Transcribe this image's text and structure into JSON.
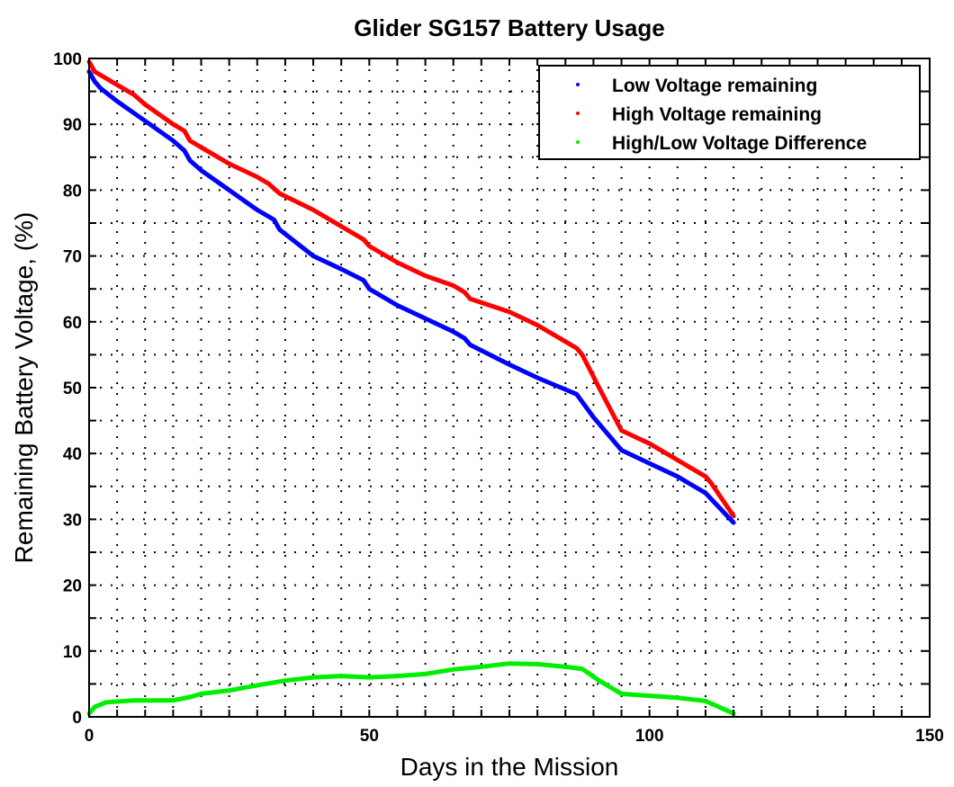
{
  "chart_data": {
    "type": "line",
    "title": "Glider SG157 Battery Usage",
    "xlabel": "Days in the Mission",
    "ylabel": "Remaining Battery Voltage, (%)",
    "xlim": [
      0,
      150
    ],
    "ylim": [
      0,
      100
    ],
    "xticks": [
      0,
      50,
      100,
      150
    ],
    "yticks": [
      0,
      10,
      20,
      30,
      40,
      50,
      60,
      70,
      80,
      90,
      100
    ],
    "grid": true,
    "grid_step_x": 5,
    "grid_step_y": 5,
    "legend_position": "top-right",
    "series": [
      {
        "name": "Low Voltage remaining",
        "color": "#0000ff",
        "x": [
          0,
          1,
          2,
          5,
          10,
          15,
          17,
          18,
          20,
          25,
          30,
          33,
          34,
          40,
          45,
          49,
          50,
          55,
          60,
          65,
          67,
          68,
          75,
          80,
          87,
          90,
          95,
          100,
          105,
          110,
          115
        ],
        "y": [
          98,
          96.5,
          95.5,
          93.5,
          90.5,
          87.5,
          86,
          84.5,
          83,
          80,
          77,
          75.5,
          74,
          70,
          68,
          66.3,
          65,
          62.5,
          60.5,
          58.5,
          57.5,
          56.5,
          53.5,
          51.5,
          49,
          45.5,
          40.5,
          38.5,
          36.5,
          34,
          29.5
        ]
      },
      {
        "name": "High Voltage remaining",
        "color": "#ff0000",
        "x": [
          0,
          1,
          3,
          8,
          10,
          15,
          17,
          18,
          20,
          25,
          30,
          32,
          34,
          40,
          45,
          49,
          50,
          55,
          60,
          65,
          67,
          68,
          75,
          80,
          85,
          87,
          88,
          91,
          95,
          100,
          105,
          110,
          111,
          115
        ],
        "y": [
          99.5,
          98,
          97,
          94.5,
          93,
          90,
          89,
          87.5,
          86.5,
          84,
          82,
          81,
          79.5,
          77,
          74.5,
          72.5,
          71.5,
          69,
          67,
          65.5,
          64.5,
          63.5,
          61.5,
          59.5,
          57,
          56,
          55,
          50,
          43.5,
          41.5,
          39,
          36.5,
          35.5,
          30.5
        ]
      },
      {
        "name": "High/Low Voltage Difference",
        "color": "#00ee00",
        "x": [
          0,
          1,
          3,
          8,
          10,
          15,
          18,
          20,
          25,
          30,
          35,
          40,
          45,
          50,
          55,
          60,
          65,
          70,
          75,
          80,
          85,
          88,
          91,
          95,
          100,
          105,
          110,
          115
        ],
        "y": [
          0.5,
          1.5,
          2.2,
          2.5,
          2.5,
          2.5,
          3,
          3.5,
          4,
          4.8,
          5.5,
          6,
          6.2,
          6,
          6.2,
          6.5,
          7.2,
          7.6,
          8.1,
          8,
          7.6,
          7.3,
          5.5,
          3.5,
          3.2,
          2.9,
          2.4,
          0.5
        ]
      }
    ]
  }
}
